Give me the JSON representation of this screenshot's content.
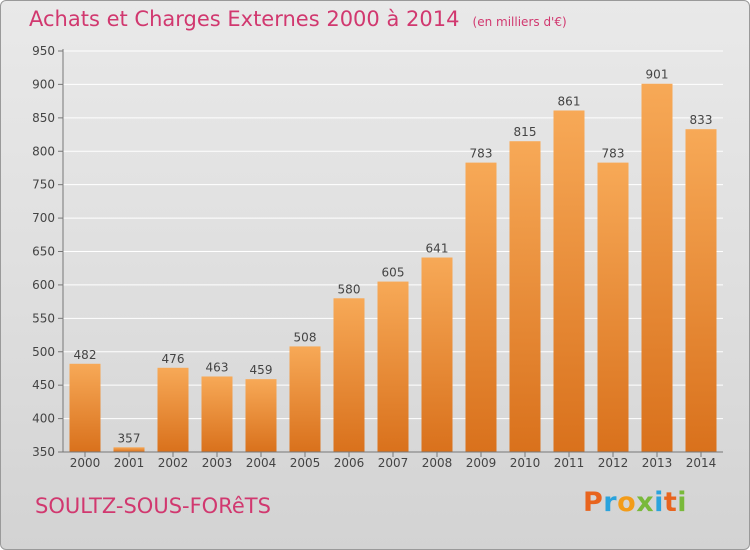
{
  "header": {
    "title": "Achats et Charges Externes 2000 à 2014",
    "unit": "(en milliers d'€)"
  },
  "commune": "SOULTZ-SOUS-FORêTS",
  "logo": {
    "text": "Proxiti",
    "colors": [
      "#e8641e",
      "#2aa3dd",
      "#f39c19",
      "#79b93a",
      "#2aa3dd",
      "#e8641e",
      "#79b93a"
    ]
  },
  "chart_data": {
    "type": "bar",
    "categories": [
      "2000",
      "2001",
      "2002",
      "2003",
      "2004",
      "2005",
      "2006",
      "2007",
      "2008",
      "2009",
      "2010",
      "2011",
      "2012",
      "2013",
      "2014"
    ],
    "values": [
      482,
      357,
      476,
      463,
      459,
      508,
      580,
      605,
      641,
      783,
      815,
      861,
      783,
      901,
      833
    ],
    "ylim": [
      350,
      950
    ],
    "yticks": [
      350,
      400,
      450,
      500,
      550,
      600,
      650,
      700,
      750,
      800,
      850,
      900,
      950
    ],
    "grid": true,
    "bar_color_top": "#f7a957",
    "bar_color_bottom": "#d9711c"
  }
}
